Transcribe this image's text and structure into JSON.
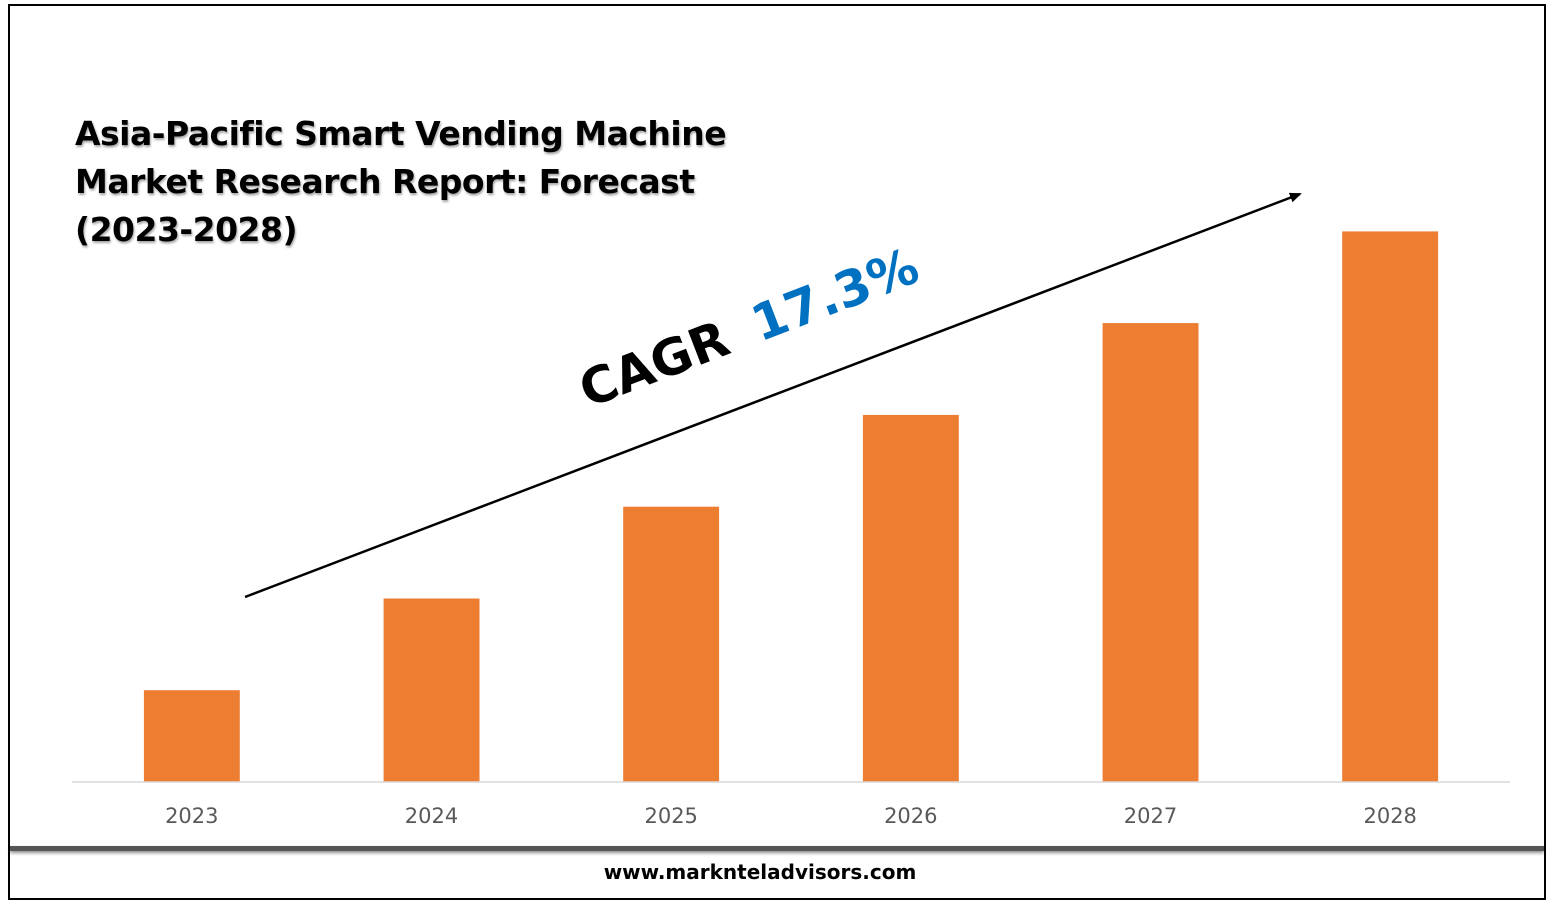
{
  "chart_data": {
    "type": "bar",
    "title_lines": [
      "Asia-Pacific Smart Vending Machine",
      "Market Research Report: Forecast",
      "(2023-2028)"
    ],
    "categories": [
      "2023",
      "2024",
      "2025",
      "2026",
      "2027",
      "2028"
    ],
    "values": [
      1,
      2,
      3,
      4,
      5,
      6
    ],
    "ylim": [
      0,
      6.2
    ],
    "bar_color": "#ED7D31",
    "axis_color": "#D9D9D9",
    "grid": false,
    "annotation": {
      "prefix": "CAGR",
      "value": "17.3%",
      "prefix_color": "#000000",
      "value_color": "#0070C0"
    }
  },
  "footer": {
    "website": "www.marknteladvisors.com"
  }
}
